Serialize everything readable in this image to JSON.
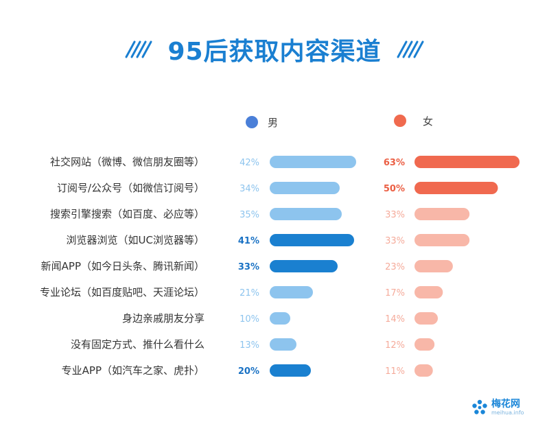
{
  "title": "95后获取内容渠道",
  "logo": {
    "name": "梅花网",
    "domain": "meihua.info"
  },
  "colors": {
    "title": "#1a7fd1",
    "male_dot": "#4a7fd8",
    "female_dot": "#f06a4e",
    "male_bar_light": "#8dc4ee",
    "male_bar_dark": "#1a80d0",
    "female_bar_light": "#f8b7a8",
    "female_bar_dark": "#f0694f",
    "male_text_light": "#8dc4ee",
    "male_text_dark": "#1a72c4",
    "female_text_light": "#f5ab9b",
    "female_text_dark": "#eb5f44"
  },
  "chart_data": {
    "type": "bar",
    "orientation": "horizontal",
    "title": "95后获取内容渠道",
    "categories": [
      "社交网站（微博、微信朋友圈等）",
      "订阅号/公众号（如微信订阅号）",
      "搜索引擎搜索（如百度、必应等）",
      "浏览器浏览（如UC浏览器等）",
      "新闻APP（如今日头条、腾讯新闻）",
      "专业论坛（如百度贴吧、天涯论坛）",
      "身边亲戚朋友分享",
      "没有固定方式、推什么看什么",
      "专业APP（如汽车之家、虎扑）"
    ],
    "series": [
      {
        "name": "男",
        "values": [
          42,
          34,
          35,
          41,
          33,
          21,
          10,
          13,
          20
        ],
        "labels": [
          "42%",
          "34%",
          "35%",
          "41%",
          "33%",
          "21%",
          "10%",
          "13%",
          "20%"
        ],
        "highlight": [
          false,
          false,
          false,
          true,
          true,
          false,
          false,
          false,
          true
        ]
      },
      {
        "name": "女",
        "values": [
          63,
          50,
          33,
          33,
          23,
          17,
          14,
          12,
          11
        ],
        "labels": [
          "63%",
          "50%",
          "33%",
          "33%",
          "23%",
          "17%",
          "14%",
          "12%",
          "11%"
        ],
        "highlight": [
          true,
          true,
          false,
          false,
          false,
          false,
          false,
          false,
          false
        ]
      }
    ],
    "legend": "top",
    "grid": false,
    "xlim": [
      0,
      100
    ]
  }
}
